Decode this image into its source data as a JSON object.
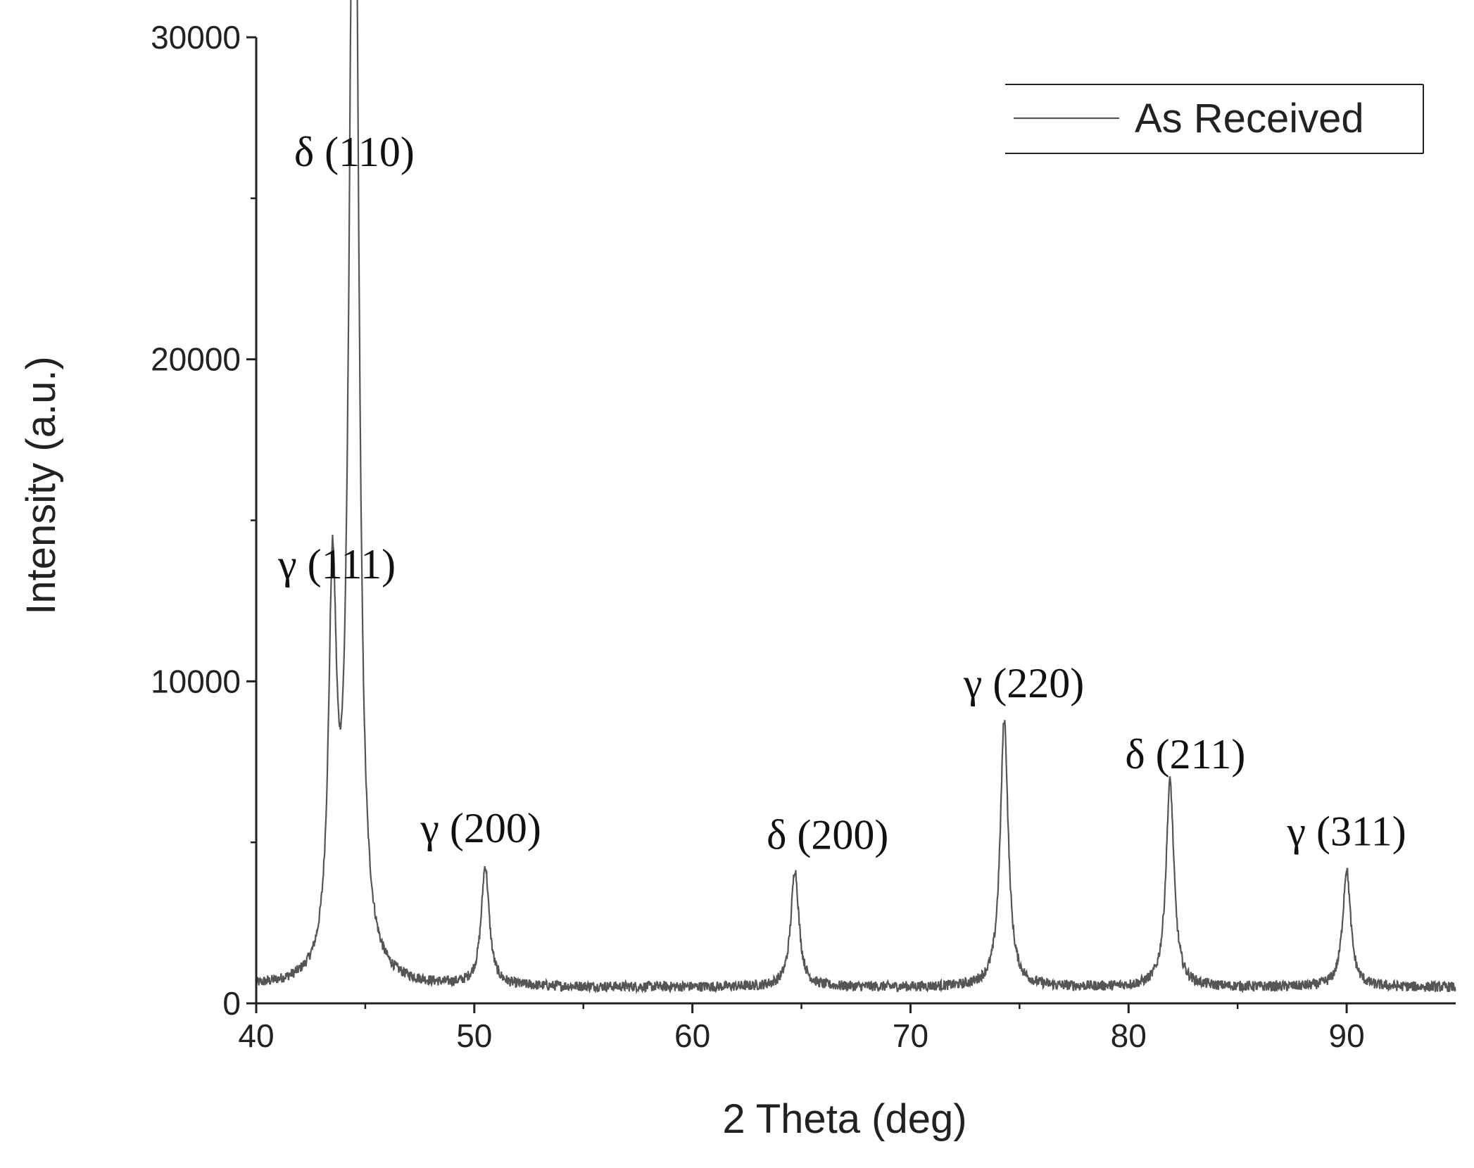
{
  "chart_data": {
    "type": "line",
    "xlabel": "2 Theta (deg)",
    "ylabel": "Intensity (a.u.)",
    "xlim": [
      40,
      95
    ],
    "ylim": [
      0,
      30000
    ],
    "x_ticks": [
      40,
      50,
      60,
      70,
      80,
      90
    ],
    "y_ticks": [
      0,
      10000,
      20000,
      30000
    ],
    "grid": false,
    "legend": {
      "position": "top-right",
      "entries": [
        "As Received"
      ]
    },
    "colors": {
      "line": "#555555",
      "axis": "#222222"
    },
    "background_level": 500,
    "series": [
      {
        "name": "As Received",
        "peaks": [
          {
            "x": 43.5,
            "y": 12300
          },
          {
            "x": 44.4,
            "y": 19300
          },
          {
            "x": 44.55,
            "y": 25000
          },
          {
            "x": 50.5,
            "y": 4200
          },
          {
            "x": 64.7,
            "y": 4150
          },
          {
            "x": 74.3,
            "y": 8800
          },
          {
            "x": 81.9,
            "y": 6900
          },
          {
            "x": 90.0,
            "y": 4150
          }
        ]
      }
    ],
    "annotations": [
      {
        "text": "δ (110)",
        "x": 44.5,
        "y": 26000
      },
      {
        "text": "γ (111)",
        "x": 43.7,
        "y": 13200
      },
      {
        "text": "γ (200)",
        "x": 50.3,
        "y": 5000
      },
      {
        "text": "δ (200)",
        "x": 66.2,
        "y": 4800
      },
      {
        "text": "γ (220)",
        "x": 75.2,
        "y": 9500
      },
      {
        "text": "δ (211)",
        "x": 82.6,
        "y": 7300
      },
      {
        "text": "γ (311)",
        "x": 90.0,
        "y": 4900
      }
    ]
  }
}
